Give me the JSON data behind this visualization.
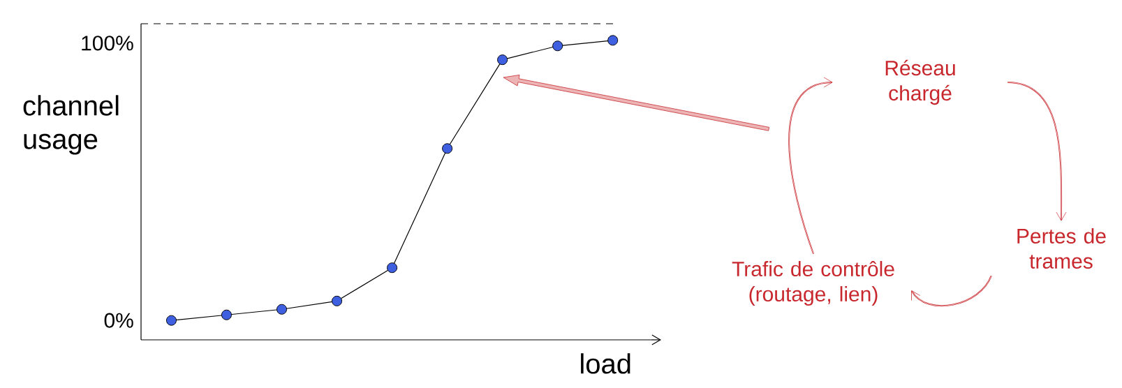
{
  "chart_data": {
    "type": "line",
    "xlabel": "load",
    "ylabel": "channel usage",
    "categories": [
      null,
      null,
      null,
      null,
      null,
      null,
      null,
      null,
      null
    ],
    "series": [
      {
        "color": "#3d5fe0",
        "values": [
          0,
          2,
          4,
          7,
          19,
          62,
          94,
          99,
          101
        ]
      }
    ],
    "ylim": [
      -7,
      107
    ],
    "yticks": [
      {
        "value": 0,
        "label": "0%"
      },
      {
        "value": 100,
        "label": "100%"
      }
    ],
    "tick_labels": "y",
    "marker": "circle",
    "line_style": "solid",
    "annotations": [
      "Réseau chargé",
      "Pertes de trames",
      "Trafic de contrôle (routage, lien)"
    ]
  }
}
